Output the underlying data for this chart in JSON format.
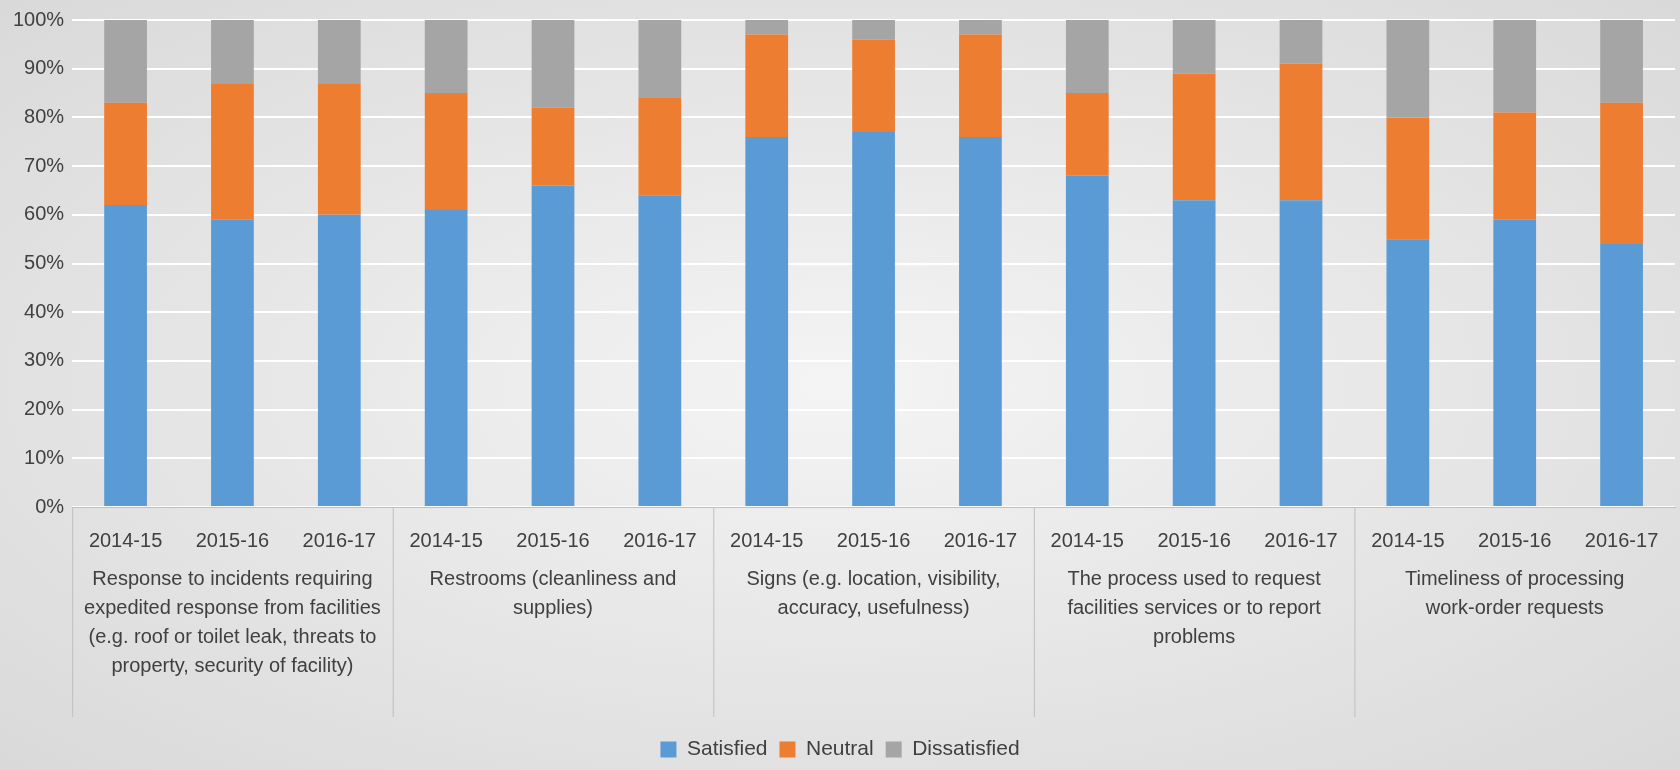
{
  "chart_data": {
    "type": "bar",
    "stacked": true,
    "categories": [
      "2014-15",
      "2015-16",
      "2016-17",
      "2014-15",
      "2015-16",
      "2016-17",
      "2014-15",
      "2015-16",
      "2016-17",
      "2014-15",
      "2015-16",
      "2016-17",
      "2014-15",
      "2015-16",
      "2016-17"
    ],
    "annotations": [
      "Response to incidents requiring expedited response from facilities (e.g. roof or toilet leak, threats to property, security of facility)",
      "Restrooms (cleanliness and supplies)",
      "Signs (e.g. location, visibility, accuracy, usefulness)",
      "The process used to request facilities services or to report problems",
      "Timeliness of processing work-order requests"
    ],
    "series": [
      {
        "name": "Satisfied",
        "color": "#5b9bd5",
        "values": [
          62,
          59,
          60,
          61,
          66,
          64,
          76,
          77,
          76,
          68,
          63,
          63,
          55,
          59,
          54
        ]
      },
      {
        "name": "Neutral",
        "color": "#ed7d31",
        "values": [
          21,
          28,
          27,
          24,
          16,
          20,
          21,
          19,
          21,
          17,
          26,
          28,
          25,
          22,
          29
        ]
      },
      {
        "name": "Dissatisfied",
        "color": "#a5a5a5",
        "values": [
          17,
          13,
          13,
          15,
          18,
          16,
          3,
          4,
          3,
          15,
          11,
          9,
          20,
          19,
          17
        ]
      }
    ],
    "ylim": [
      0,
      100
    ],
    "yticks": [
      {
        "value": 0,
        "label": "0%"
      },
      {
        "value": 10,
        "label": "10%"
      },
      {
        "value": 20,
        "label": "20%"
      },
      {
        "value": 30,
        "label": "30%"
      },
      {
        "value": 40,
        "label": "40%"
      },
      {
        "value": 50,
        "label": "50%"
      },
      {
        "value": 60,
        "label": "60%"
      },
      {
        "value": 70,
        "label": "70%"
      },
      {
        "value": 80,
        "label": "80%"
      },
      {
        "value": 90,
        "label": "90%"
      },
      {
        "value": 100,
        "label": "100%"
      }
    ],
    "grid": "y",
    "legend": "bottom"
  }
}
